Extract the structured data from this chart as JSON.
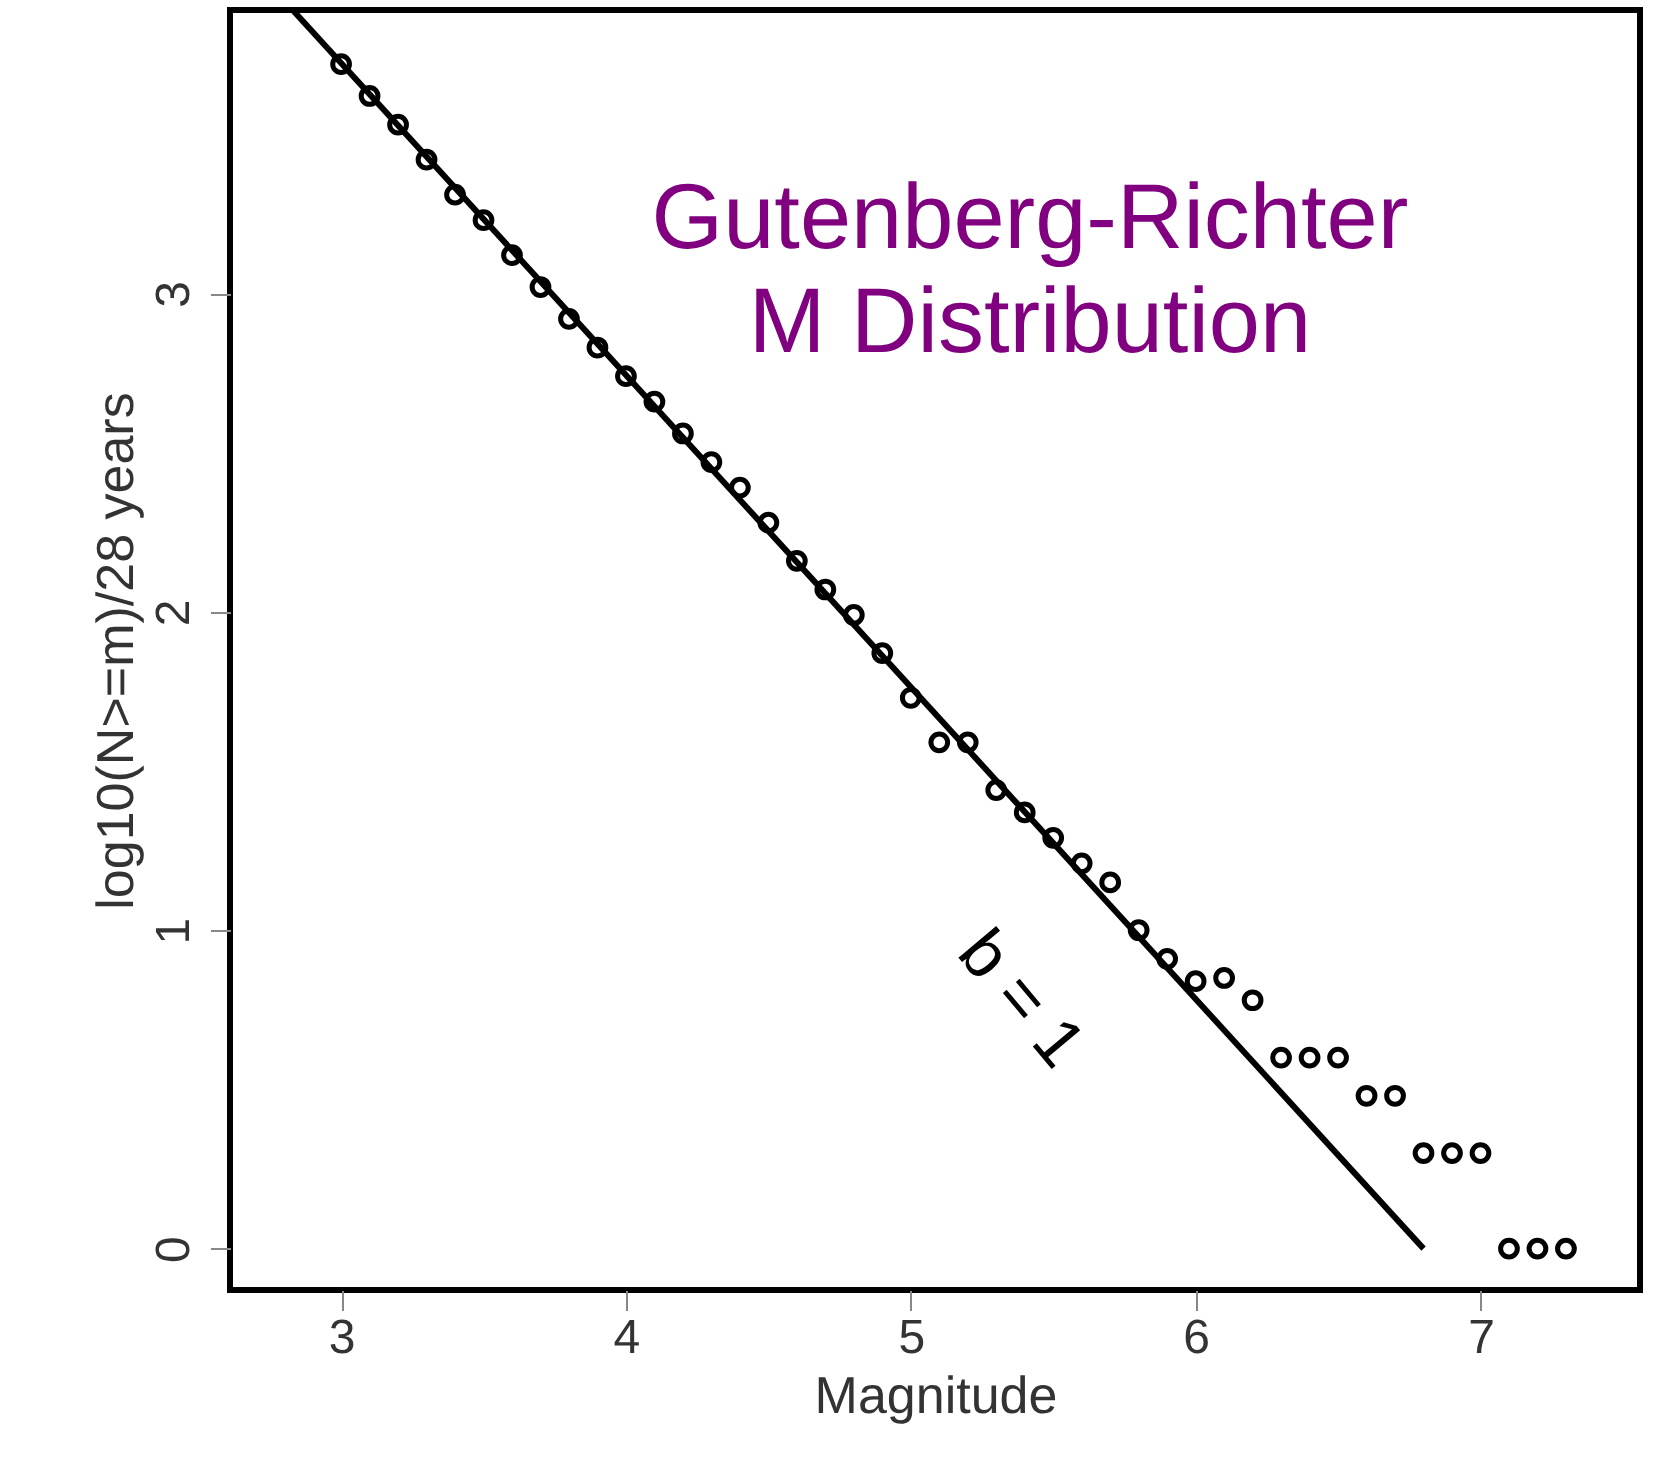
{
  "chart_data": {
    "type": "scatter",
    "xlabel": "Magnitude",
    "ylabel": "log10(N>=m)/28 years",
    "annotations": [
      "Gutenberg-Richter\nM Distribution",
      "b = 1"
    ],
    "x": [
      3.0,
      3.1,
      3.2,
      3.3,
      3.4,
      3.5,
      3.6,
      3.7,
      3.8,
      3.9,
      4.0,
      4.1,
      4.2,
      4.3,
      4.4,
      4.5,
      4.6,
      4.7,
      4.8,
      4.9,
      5.0,
      5.1,
      5.2,
      5.3,
      5.4,
      5.5,
      5.6,
      5.7,
      5.8,
      5.9,
      6.0,
      6.1,
      6.2,
      6.3,
      6.4,
      6.5,
      6.6,
      6.7,
      6.8,
      6.9,
      7.0,
      7.1,
      7.2,
      7.3
    ],
    "series": [
      {
        "color": "#000000",
        "marker": "circle",
        "values": [
          3.72,
          3.62,
          3.53,
          3.42,
          3.31,
          3.23,
          3.12,
          3.02,
          2.92,
          2.83,
          2.74,
          2.66,
          2.56,
          2.47,
          2.39,
          2.28,
          2.16,
          2.07,
          1.99,
          1.87,
          1.73,
          1.59,
          1.59,
          1.44,
          1.37,
          1.29,
          1.21,
          1.15,
          1.0,
          0.91,
          0.84,
          0.85,
          0.78,
          0.6,
          0.6,
          0.6,
          0.48,
          0.48,
          0.3,
          0.3,
          0.3,
          0,
          0,
          0
        ]
      },
      {
        "type": "line",
        "color": "#000000",
        "x": [
          2.83,
          6.8
        ],
        "values": [
          3.89,
          0
        ]
      }
    ],
    "xlim": [
      2.61,
      7.56
    ],
    "ylim": [
      -0.13,
      3.89
    ],
    "xticks": [
      3,
      4,
      5,
      6,
      7
    ],
    "yticks": [
      0,
      1,
      2,
      3
    ],
    "grid": false
  }
}
